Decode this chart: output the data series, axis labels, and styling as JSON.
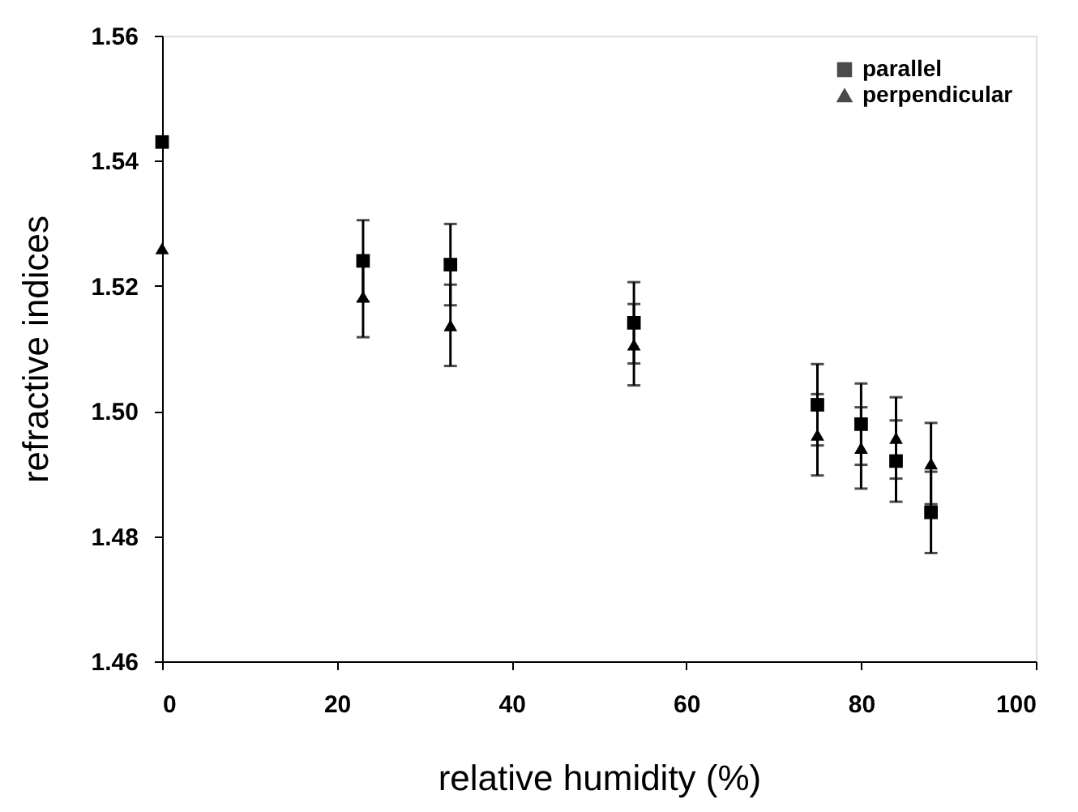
{
  "chart_data": {
    "type": "scatter",
    "xlabel": "relative   humidity (%)",
    "ylabel": "refractive    indices",
    "x": [
      0,
      23,
      33,
      54,
      75,
      80,
      84,
      88
    ],
    "series": [
      {
        "name": "parallel",
        "color": "#000000",
        "marker": "square",
        "values": [
          1.543,
          1.524,
          1.5234,
          1.5141,
          1.501,
          1.4979,
          1.492,
          1.4838
        ],
        "errors": [
          null,
          0.0065,
          0.0065,
          0.0065,
          0.0065,
          0.0065,
          0.0065,
          0.0065
        ]
      },
      {
        "name": "perpendicular",
        "color": "#000000",
        "marker": "triangle",
        "values": [
          1.526,
          1.5183,
          1.5137,
          1.5106,
          1.4962,
          1.4941,
          1.4957,
          1.4916
        ],
        "errors": [
          null,
          0.0065,
          0.0065,
          0.0065,
          0.0065,
          0.0065,
          0.0065,
          0.0065
        ]
      }
    ],
    "xlim": [
      0,
      100
    ],
    "xticks": [
      0,
      20,
      40,
      60,
      80,
      100
    ],
    "ylim": [
      1.46,
      1.56
    ],
    "yticks": [
      {
        "value": 1.46,
        "label": "1.46"
      },
      {
        "value": 1.48,
        "label": "1.48"
      },
      {
        "value": 1.5,
        "label": "1.50"
      },
      {
        "value": 1.52,
        "label": "1.52"
      },
      {
        "value": 1.54,
        "label": "1.54"
      },
      {
        "value": 1.56,
        "label": "1.56"
      }
    ],
    "grid": false,
    "legend": "top right"
  }
}
